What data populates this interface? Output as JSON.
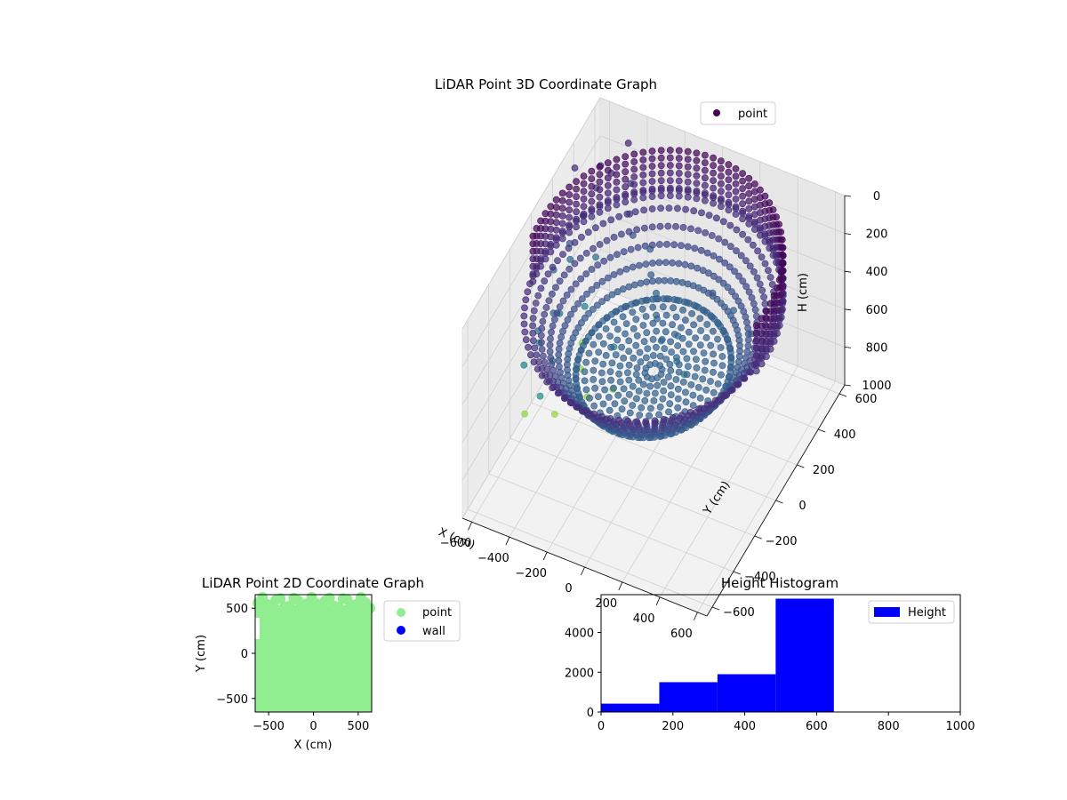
{
  "chart_data": [
    {
      "type": "scatter",
      "projection": "3d",
      "title": "LiDAR Point 3D Coordinate Graph",
      "xlabel": "X (cm)",
      "ylabel": "Y (cm)",
      "zlabel": "H (cm)",
      "xlim": [
        -650,
        650
      ],
      "ylim": [
        -650,
        650
      ],
      "zlim": [
        1000,
        0
      ],
      "x_ticks": [
        "−600",
        "−400",
        "−200",
        "0",
        "200",
        "400",
        "600"
      ],
      "y_ticks": [
        "−600",
        "−400",
        "−200",
        "0",
        "200",
        "400",
        "600"
      ],
      "z_ticks": [
        "0",
        "200",
        "400",
        "600",
        "800",
        "1000"
      ],
      "colormap": "viridis",
      "legend": {
        "labels": [
          "point"
        ],
        "position": "upper right"
      },
      "grid": true,
      "series": [
        {
          "name": "point",
          "color": "#440154",
          "structure": {
            "center": [
              0,
              0
            ],
            "inner_radius": 360,
            "wall_radius": 600,
            "heights": [
              0,
              600
            ]
          },
          "outliers": [
            [
              -640,
              470,
              450
            ],
            [
              -660,
              380,
              520
            ],
            [
              -620,
              560,
              380
            ],
            [
              -700,
              300,
              600
            ],
            [
              -680,
              420,
              650
            ],
            [
              -600,
              520,
              700
            ],
            [
              -640,
              250,
              760
            ],
            [
              -580,
              380,
              820
            ],
            [
              -720,
              200,
              900
            ],
            [
              -560,
              320,
              950
            ],
            [
              -620,
              600,
              300
            ],
            [
              -700,
              500,
              250
            ],
            [
              -500,
              650,
              180
            ],
            [
              -540,
              560,
              270
            ],
            [
              -460,
              600,
              330
            ],
            [
              -420,
              520,
              400
            ],
            [
              -380,
              480,
              460
            ],
            [
              -300,
              500,
              520
            ],
            [
              -250,
              420,
              560
            ],
            [
              -200,
              380,
              600
            ],
            [
              -150,
              300,
              640
            ],
            [
              -100,
              250,
              690
            ],
            [
              -50,
              320,
              710
            ],
            [
              0,
              220,
              730
            ],
            [
              50,
              200,
              760
            ],
            [
              -600,
              120,
              620
            ],
            [
              -660,
              80,
              700
            ],
            [
              -560,
              40,
              780
            ],
            [
              -700,
              20,
              840
            ],
            [
              -580,
              -40,
              900
            ],
            [
              -640,
              -80,
              980
            ],
            [
              -520,
              -10,
              1000
            ],
            [
              -500,
              200,
              950
            ],
            [
              -420,
              120,
              990
            ],
            [
              -380,
              300,
              880
            ],
            [
              -300,
              150,
              930
            ],
            [
              200,
              400,
              550
            ],
            [
              350,
              300,
              520
            ],
            [
              100,
              380,
              480
            ],
            [
              450,
              420,
              420
            ]
          ]
        }
      ]
    },
    {
      "type": "scatter",
      "title": "LiDAR Point 2D Coordinate Graph",
      "xlabel": "X (cm)",
      "ylabel": "Y (cm)",
      "xlim": [
        -650,
        650
      ],
      "ylim": [
        -650,
        650
      ],
      "x_ticks": [
        "−500",
        "0",
        "500"
      ],
      "y_ticks": [
        "−500",
        "0",
        "500"
      ],
      "legend": {
        "labels": [
          "point",
          "wall"
        ],
        "position": "outside right"
      },
      "grid": false,
      "series": [
        {
          "name": "point",
          "color": "#90ee90"
        },
        {
          "name": "wall",
          "color": "#0000ff"
        }
      ]
    },
    {
      "type": "bar",
      "subtype": "histogram",
      "title": "Height Histogram",
      "xlim": [
        0,
        1000
      ],
      "ylim": [
        0,
        5900
      ],
      "x_ticks": [
        "0",
        "200",
        "400",
        "600",
        "800",
        "1000"
      ],
      "y_ticks": [
        "0",
        "2000",
        "4000"
      ],
      "legend": {
        "labels": [
          "Height"
        ],
        "position": "upper right"
      },
      "grid": false,
      "series": [
        {
          "name": "Height",
          "color": "#0000ff",
          "bin_edges": [
            0,
            162,
            324,
            486,
            648
          ],
          "values": [
            420,
            1500,
            1900,
            5700
          ]
        }
      ]
    }
  ]
}
